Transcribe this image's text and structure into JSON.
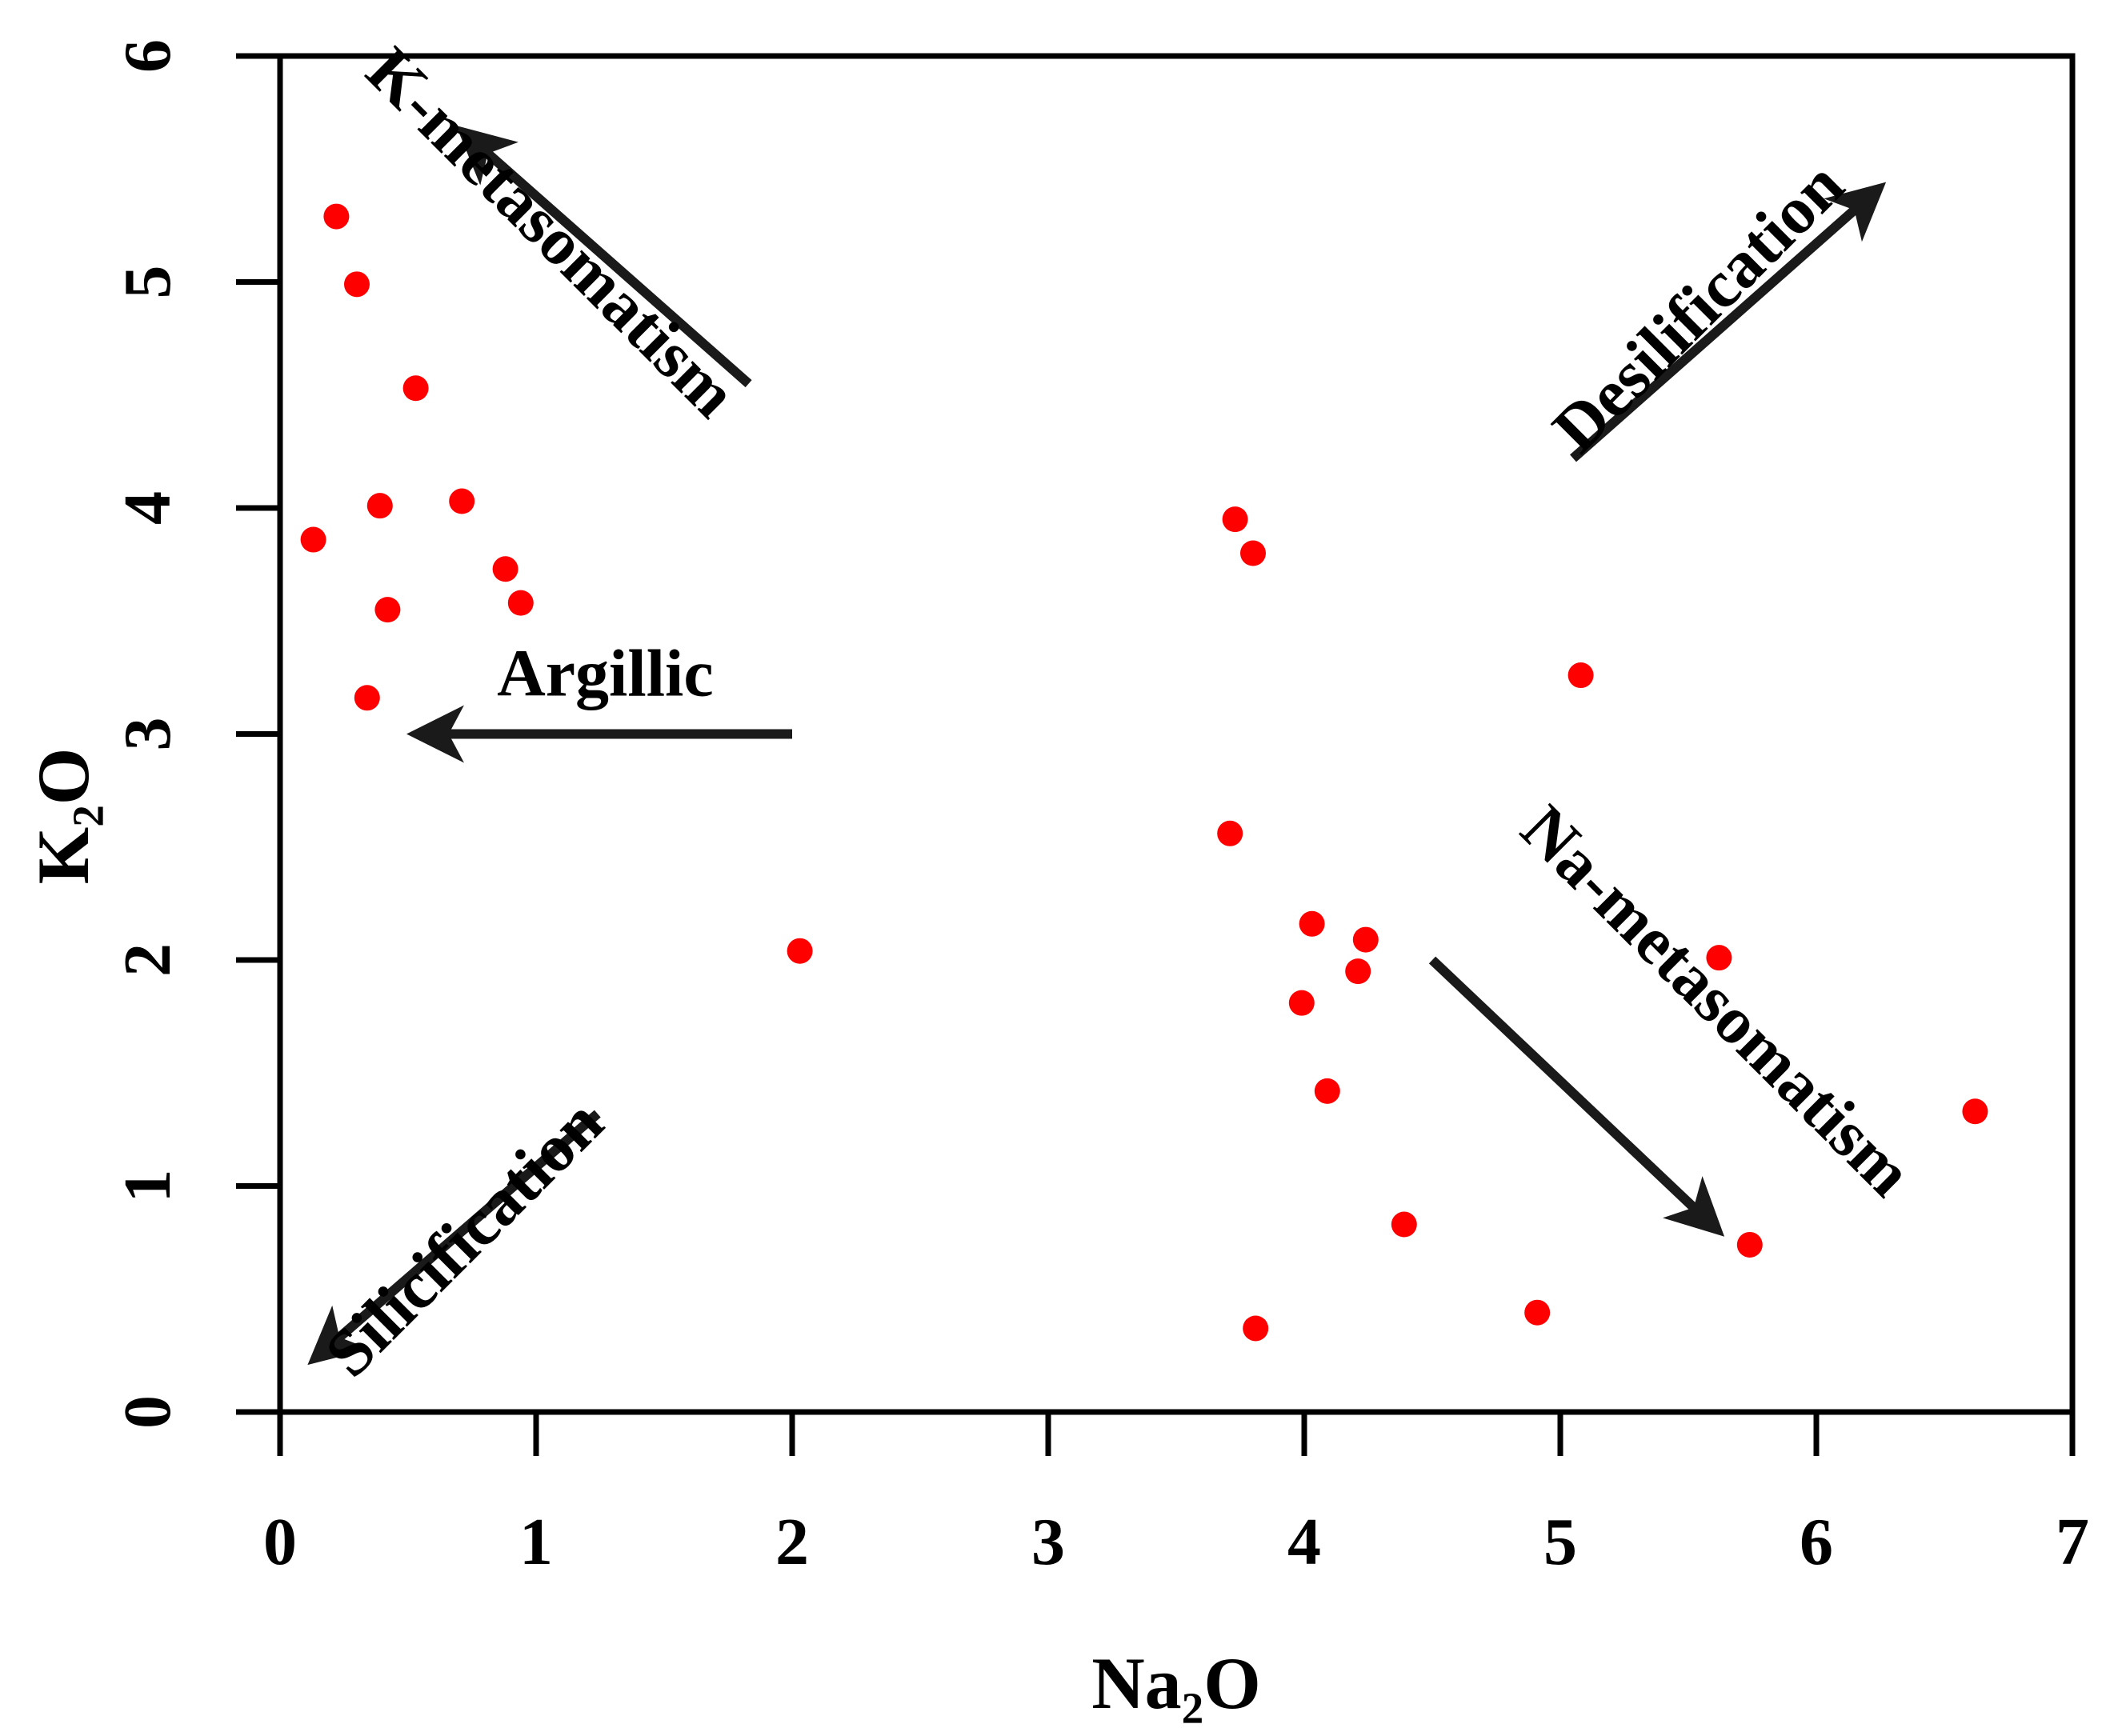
{
  "chart_data": {
    "type": "scatter",
    "xlabel": "Na₂O",
    "ylabel": "K₂O",
    "xlim": [
      0,
      7
    ],
    "ylim": [
      0,
      6
    ],
    "xticks": [
      0,
      1,
      2,
      3,
      4,
      5,
      6,
      7
    ],
    "yticks": [
      0,
      1,
      2,
      3,
      4,
      5,
      6
    ],
    "grid": false,
    "point_color": "#ff0000",
    "series": [
      {
        "points": [
          [
            0.22,
            5.29
          ],
          [
            0.3,
            4.99
          ],
          [
            0.53,
            4.53
          ],
          [
            0.13,
            3.86
          ],
          [
            0.39,
            4.01
          ],
          [
            0.71,
            4.03
          ],
          [
            0.88,
            3.73
          ],
          [
            0.94,
            3.58
          ],
          [
            0.42,
            3.55
          ],
          [
            0.34,
            3.16
          ],
          [
            2.03,
            2.04
          ],
          [
            3.73,
            3.95
          ],
          [
            3.8,
            3.8
          ],
          [
            3.71,
            2.56
          ],
          [
            5.08,
            3.26
          ],
          [
            4.03,
            2.16
          ],
          [
            4.24,
            2.09
          ],
          [
            4.21,
            1.95
          ],
          [
            3.99,
            1.81
          ],
          [
            4.09,
            1.42
          ],
          [
            4.39,
            0.83
          ],
          [
            4.91,
            0.44
          ],
          [
            3.81,
            0.37
          ],
          [
            5.62,
            2.01
          ],
          [
            5.74,
            0.74
          ],
          [
            6.62,
            1.33
          ]
        ]
      }
    ],
    "annotations": [
      {
        "text": "K-metasomatism",
        "arrow_from": [
          1.83,
          4.55
        ],
        "arrow_to": [
          0.73,
          5.65
        ]
      },
      {
        "text": "Desilification",
        "arrow_from": [
          5.05,
          4.22
        ],
        "arrow_to": [
          6.23,
          5.4
        ]
      },
      {
        "text": "Argillic",
        "arrow_from": [
          2.0,
          3.0
        ],
        "arrow_to": [
          0.55,
          3.0
        ]
      },
      {
        "text": "Na-metasomatism",
        "arrow_from": [
          4.5,
          2.0
        ],
        "arrow_to": [
          5.6,
          0.82
        ]
      },
      {
        "text": "Silicification",
        "arrow_from": [
          1.24,
          1.32
        ],
        "arrow_to": [
          0.15,
          0.25
        ]
      }
    ]
  }
}
